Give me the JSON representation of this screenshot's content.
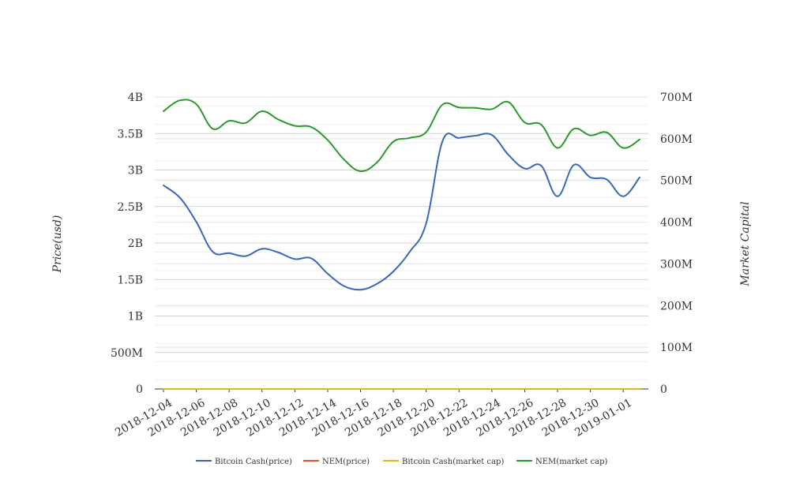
{
  "chart_data": {
    "type": "line",
    "title": "",
    "x": [
      "2018-12-04",
      "2018-12-05",
      "2018-12-06",
      "2018-12-07",
      "2018-12-08",
      "2018-12-09",
      "2018-12-10",
      "2018-12-11",
      "2018-12-12",
      "2018-12-13",
      "2018-12-14",
      "2018-12-15",
      "2018-12-16",
      "2018-12-17",
      "2018-12-18",
      "2018-12-19",
      "2018-12-20",
      "2018-12-21",
      "2018-12-22",
      "2018-12-23",
      "2018-12-24",
      "2018-12-25",
      "2018-12-26",
      "2018-12-27",
      "2018-12-28",
      "2018-12-29",
      "2018-12-30",
      "2018-12-31",
      "2019-01-01",
      "2019-01-02"
    ],
    "x_tick_labels": [
      "2018-12-04",
      "2018-12-06",
      "2018-12-08",
      "2018-12-10",
      "2018-12-12",
      "2018-12-14",
      "2018-12-16",
      "2018-12-18",
      "2018-12-20",
      "2018-12-22",
      "2018-12-24",
      "2018-12-26",
      "2018-12-28",
      "2018-12-30",
      "2019-01-01"
    ],
    "y_left": {
      "label": "Price(usd)",
      "ticks": [
        "0",
        "500M",
        "1B",
        "1.5B",
        "2B",
        "2.5B",
        "3B",
        "3.5B",
        "4B"
      ],
      "range": [
        0,
        4000000000
      ]
    },
    "y_right": {
      "label": "Market Capital",
      "ticks": [
        "0",
        "100M",
        "200M",
        "300M",
        "400M",
        "500M",
        "600M",
        "700M"
      ],
      "range": [
        0,
        700000000
      ]
    },
    "grid": true,
    "legend_position": "bottom",
    "series": [
      {
        "name": "Bitcoin Cash(price)",
        "axis": "left",
        "color": "#3a67b8",
        "values": [
          2790000000,
          2620000000,
          2290000000,
          1880000000,
          1860000000,
          1820000000,
          1920000000,
          1870000000,
          1780000000,
          1790000000,
          1580000000,
          1410000000,
          1360000000,
          1440000000,
          1610000000,
          1880000000,
          2270000000,
          3400000000,
          3440000000,
          3470000000,
          3480000000,
          3210000000,
          3020000000,
          3060000000,
          2640000000,
          3070000000,
          2900000000,
          2870000000,
          2640000000,
          2900000000
        ]
      },
      {
        "name": "NEM(price)",
        "axis": "left",
        "color": "#d4562b",
        "values": [
          0,
          0,
          0,
          0,
          0,
          0,
          0,
          0,
          0,
          0,
          0,
          0,
          0,
          0,
          0,
          0,
          0,
          0,
          0,
          0,
          0,
          0,
          0,
          0,
          0,
          0,
          0,
          0,
          0,
          0
        ]
      },
      {
        "name": "Bitcoin Cash(market cap)",
        "axis": "right",
        "color": "#e8b21e",
        "values": [
          0,
          0,
          0,
          0,
          0,
          0,
          0,
          0,
          0,
          0,
          0,
          0,
          0,
          0,
          0,
          0,
          0,
          0,
          0,
          0,
          0,
          0,
          0,
          0,
          0,
          0,
          0,
          0,
          0,
          0
        ]
      },
      {
        "name": "NEM(market cap)",
        "axis": "right",
        "color": "#2a9a2a",
        "values": [
          666000000,
          692000000,
          683000000,
          624000000,
          643000000,
          638000000,
          666000000,
          646000000,
          631000000,
          628000000,
          597000000,
          550000000,
          522000000,
          543000000,
          593000000,
          602000000,
          616000000,
          682000000,
          675000000,
          674000000,
          671000000,
          688000000,
          639000000,
          634000000,
          578000000,
          624000000,
          608000000,
          615000000,
          578000000,
          598000000
        ]
      }
    ]
  }
}
